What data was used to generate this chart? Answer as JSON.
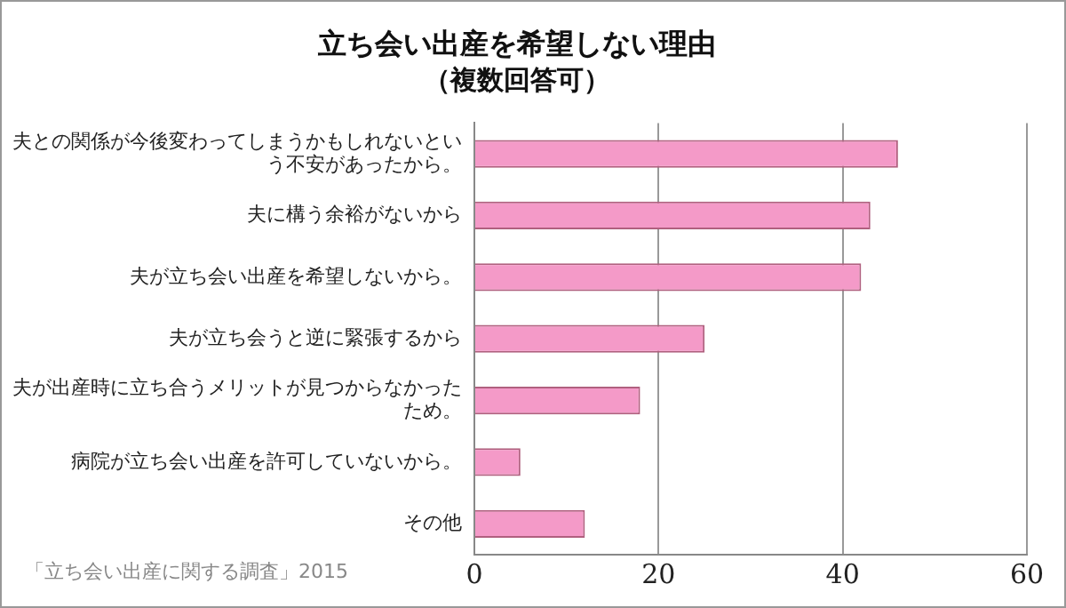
{
  "chart_data": {
    "type": "bar",
    "orientation": "horizontal",
    "title": "立ち会い出産を希望しない理由",
    "subtitle": "（複数回答可）",
    "categories": [
      "夫との関係が今後変わってしまうかもしれないという不安があったから。",
      "夫に構う余裕がないから",
      "夫が立ち会い出産を希望しないから。",
      "夫が立ち会うと逆に緊張するから",
      "夫が出産時に立ち合うメリットが見つからなかったため。",
      "病院が立ち会い出産を許可していないから。",
      "その他"
    ],
    "values": [
      46,
      43,
      42,
      25,
      18,
      5,
      12
    ],
    "color": "#f49ac8",
    "xlim": [
      0,
      60
    ],
    "xticks": [
      0,
      20,
      40,
      60
    ],
    "grid": "x",
    "legend": false,
    "annotations": [
      "「立ち会い出産に関する調査」2015"
    ]
  }
}
